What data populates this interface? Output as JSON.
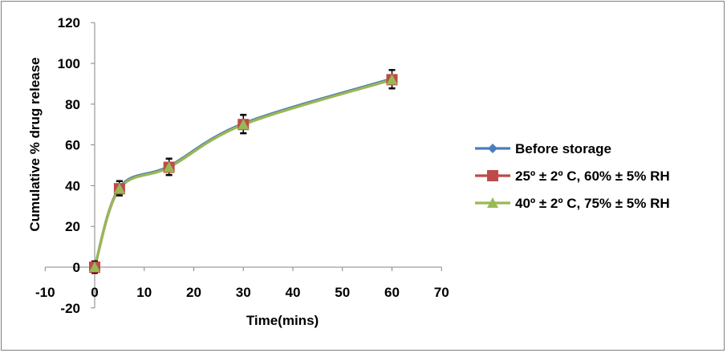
{
  "chart_data": {
    "type": "line",
    "title": "",
    "xlabel": "Time(mins)",
    "ylabel": "Cumulative % drug release",
    "xlim": [
      -10,
      70
    ],
    "ylim": [
      -20,
      120
    ],
    "x_ticks": [
      "-10",
      "0",
      "10",
      "20",
      "30",
      "40",
      "50",
      "60",
      "70"
    ],
    "y_ticks": [
      "-20",
      "0",
      "20",
      "40",
      "60",
      "80",
      "100",
      "120"
    ],
    "x_tick_values": [
      -10,
      0,
      10,
      20,
      30,
      40,
      50,
      60,
      70
    ],
    "y_tick_values": [
      -20,
      0,
      20,
      40,
      60,
      80,
      100,
      120
    ],
    "x": [
      0,
      5,
      15,
      30,
      60
    ],
    "smoothed": true,
    "grid": false,
    "legend_position": "right",
    "series": [
      {
        "name": "Before storage",
        "values": [
          0,
          39,
          49.5,
          70.5,
          92.5
        ],
        "errors": [
          3,
          3.5,
          4,
          4.5,
          4.5
        ],
        "color": "#4a7ebb",
        "marker": "diamond"
      },
      {
        "name": "25º ± 2º C, 60% ± 5% RH",
        "values": [
          0,
          38.5,
          49,
          70,
          92
        ],
        "errors": [
          3,
          3.5,
          4,
          4.5,
          4.5
        ],
        "color": "#be4b48",
        "marker": "square"
      },
      {
        "name": "40º  ± 2º C, 75% ± 5% RH",
        "values": [
          0,
          38.5,
          49,
          70,
          92
        ],
        "errors": [
          3,
          3.5,
          4,
          4.5,
          4.5
        ],
        "color": "#98b954",
        "marker": "triangle"
      }
    ]
  }
}
